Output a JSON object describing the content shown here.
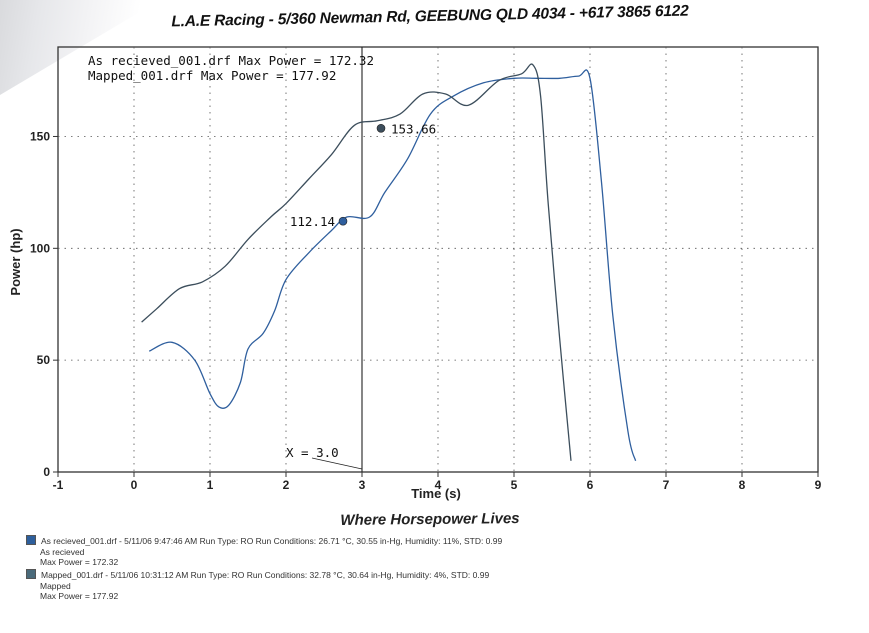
{
  "header": {
    "title": "L.A.E Racing - 5/360 Newman Rd, GEEBUNG QLD 4034 - +617 3865 6122"
  },
  "legend": [
    "As recieved_001.drf Max Power = 172.32",
    "Mapped_001.drf Max Power = 177.92"
  ],
  "cursor": {
    "label": "X = 3.0",
    "x": 3.0
  },
  "footer": {
    "title": "Where Horsepower Lives",
    "runs": [
      {
        "line": "As recieved_001.drf - 5/11/06 9:47:46 AM  Run Type: RO  Run Conditions: 26.71 °C, 30.55 in-Hg,  Humidity:  11%, STD: 0.99",
        "name": "As recieved",
        "max": "Max Power = 172.32",
        "color": "#2e5f9c"
      },
      {
        "line": "Mapped_001.drf - 5/11/06 10:31:12 AM  Run Type: RO  Run Conditions: 32.78 °C, 30.64 in-Hg,  Humidity:  4%, STD: 0.99",
        "name": "Mapped",
        "max": "Max Power = 177.92",
        "color": "#4a6a7a"
      }
    ]
  },
  "chart_data": {
    "type": "line",
    "title": "",
    "xlabel": "Time (s)",
    "ylabel": "Power (hp)",
    "xlim": [
      -1,
      9
    ],
    "ylim": [
      0,
      190
    ],
    "x_ticks": [
      -1,
      0,
      1,
      2,
      3,
      4,
      5,
      6,
      7,
      8,
      9
    ],
    "y_ticks": [
      0,
      50,
      100,
      150
    ],
    "grid": true,
    "series": [
      {
        "name": "As recieved_001.drf",
        "color": "#2f5f9e",
        "x": [
          0.2,
          0.5,
          0.8,
          1.0,
          1.12,
          1.25,
          1.4,
          1.5,
          1.7,
          1.85,
          2.0,
          2.3,
          2.6,
          2.8,
          3.1,
          3.3,
          3.6,
          3.9,
          4.2,
          4.6,
          5.0,
          5.3,
          5.6,
          5.85,
          6.0,
          6.15,
          6.3,
          6.5,
          6.6
        ],
        "y": [
          54,
          58,
          50,
          35,
          29,
          30,
          40,
          55,
          62,
          72,
          86,
          98,
          108,
          114,
          114,
          125,
          140,
          160,
          168,
          174,
          176,
          176,
          176,
          177,
          176,
          130,
          70,
          18,
          5
        ]
      },
      {
        "name": "Mapped_001.drf",
        "color": "#3c4e5c",
        "x": [
          0.1,
          0.3,
          0.6,
          0.9,
          1.2,
          1.5,
          1.8,
          2.0,
          2.3,
          2.6,
          2.9,
          3.2,
          3.5,
          3.8,
          4.1,
          4.4,
          4.8,
          5.1,
          5.25,
          5.35,
          5.45,
          5.6,
          5.75
        ],
        "y": [
          67,
          73,
          82,
          85,
          92,
          104,
          114,
          120,
          131,
          142,
          155,
          157,
          160,
          169,
          169,
          164,
          175,
          178,
          182,
          168,
          120,
          60,
          5
        ]
      }
    ],
    "markers": [
      {
        "label": "112.14",
        "x": 2.75,
        "y": 112.14,
        "series": 0
      },
      {
        "label": "153.66",
        "x": 3.25,
        "y": 153.66,
        "series": 1
      }
    ]
  }
}
